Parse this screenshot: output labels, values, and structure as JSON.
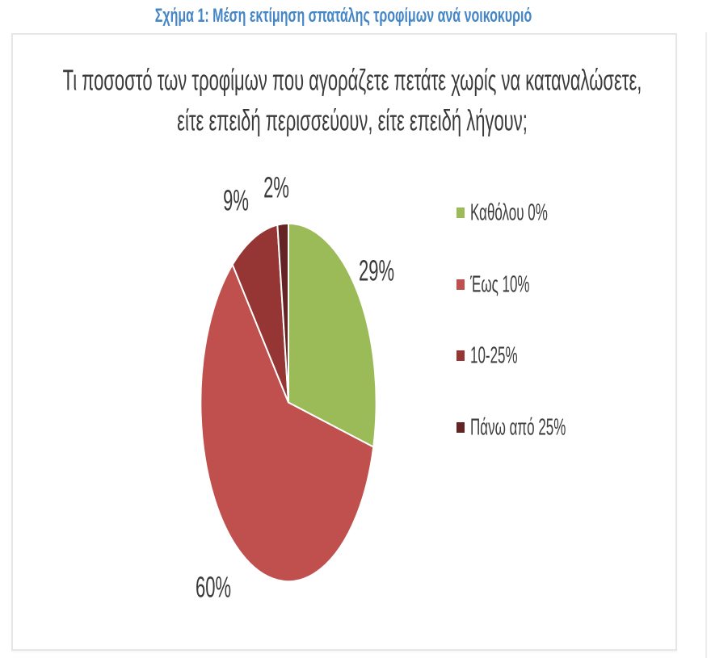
{
  "figure_caption": "Σχήμα 1: Μέση εκτίμηση σπατάλης τροφίμων ανά νοικοκυριό",
  "question": {
    "line1": "Τι ποσοστό των τροφίμων που αγοράζετε πετάτε χωρίς να καταναλώσετε,",
    "line2": "είτε επειδή περισσεύουν, είτε επειδή λήγουν;"
  },
  "chart_data": {
    "type": "pie",
    "title": "Τι ποσοστό των τροφίμων που αγοράζετε πετάτε χωρίς να καταναλώσετε, είτε επειδή περισσεύουν, είτε επειδή λήγουν;",
    "labels": [
      "Καθόλου 0%",
      "Έως 10%",
      "10-25%",
      "Πάνω από 25%"
    ],
    "values": [
      29,
      60,
      9,
      2
    ],
    "colors": [
      "#9bbb59",
      "#c0504d",
      "#963634",
      "#632423"
    ],
    "data_labels": [
      "29%",
      "60%",
      "9%",
      "2%"
    ],
    "start_angle_deg": 0,
    "direction": "clockwise",
    "legend_position": "right",
    "slice_gap_color": "#ffffff"
  },
  "style_colors": {
    "caption_blue": "#4486c6",
    "text_dark": "#3a3a3a",
    "frame_border": "#e6e6e6"
  }
}
